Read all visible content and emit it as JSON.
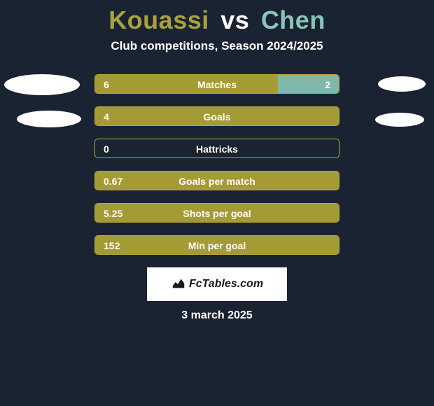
{
  "title": {
    "player1": "Kouassi",
    "vs": "vs",
    "player2": "Chen",
    "player1_color": "#a9a13c",
    "player2_color": "#89c5b6"
  },
  "subtitle": "Club competitions, Season 2024/2025",
  "bar_colors": {
    "left_fill": "#a59b34",
    "right_fill": "#7fb8a8",
    "border": "#b8a93e",
    "empty": "transparent"
  },
  "avatars": {
    "left_bg": "#ffffff",
    "right_bg": "#ffffff"
  },
  "stats": [
    {
      "label": "Matches",
      "left_val": "6",
      "right_val": "2",
      "left_pct": 75,
      "right_pct": 25,
      "show_right": true
    },
    {
      "label": "Goals",
      "left_val": "4",
      "right_val": "",
      "left_pct": 100,
      "right_pct": 0,
      "show_right": false
    },
    {
      "label": "Hattricks",
      "left_val": "0",
      "right_val": "",
      "left_pct": 0,
      "right_pct": 0,
      "show_right": false
    },
    {
      "label": "Goals per match",
      "left_val": "0.67",
      "right_val": "",
      "left_pct": 100,
      "right_pct": 0,
      "show_right": false
    },
    {
      "label": "Shots per goal",
      "left_val": "5.25",
      "right_val": "",
      "left_pct": 100,
      "right_pct": 0,
      "show_right": false
    },
    {
      "label": "Min per goal",
      "left_val": "152",
      "right_val": "",
      "left_pct": 100,
      "right_pct": 0,
      "show_right": false
    }
  ],
  "watermark": {
    "text": "FcTables.com",
    "bg": "#ffffff",
    "text_color": "#1a1a1a"
  },
  "date": "3 march 2025",
  "background_color": "#1a2332"
}
